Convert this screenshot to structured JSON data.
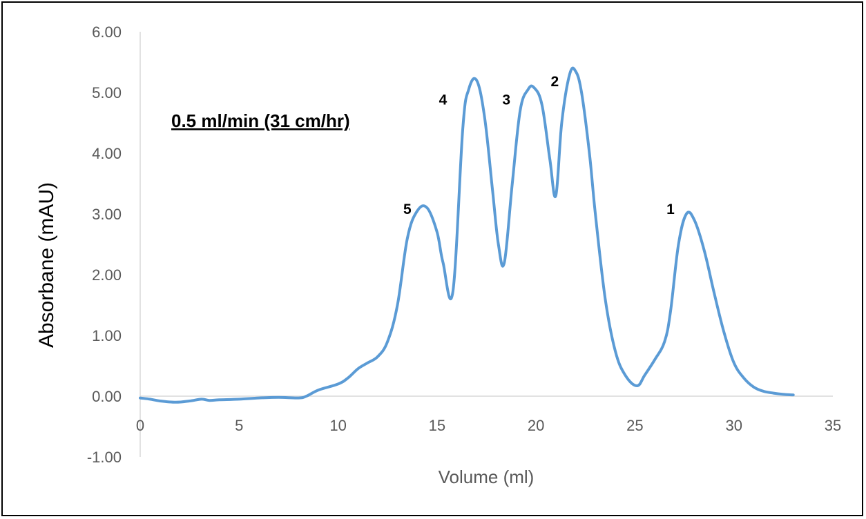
{
  "chart_data": {
    "type": "line",
    "title": "",
    "xlabel": "Volume (ml)",
    "ylabel": "Absorbane (mAU)",
    "xlim": [
      0,
      35
    ],
    "ylim": [
      -1,
      6
    ],
    "x_ticks": [
      "0",
      "5",
      "10",
      "15",
      "20",
      "25",
      "30",
      "35"
    ],
    "y_ticks": [
      "6.00",
      "5.00",
      "4.00",
      "3.00",
      "2.00",
      "1.00",
      "0.00",
      "-1.00"
    ],
    "grid": false,
    "annotation": "0.5 ml/min (31 cm/hr)",
    "series_color": "#5b9bd5",
    "series": [
      {
        "x": [
          0,
          0.5,
          1.0,
          1.8,
          2.5,
          3.1,
          3.5,
          4.0,
          5.0,
          6.0,
          7.0,
          8.0,
          8.4,
          9.0,
          10.0,
          10.5,
          11.0,
          11.5,
          12.0,
          12.5,
          13.0,
          13.5,
          14.0,
          14.5,
          15.0,
          15.3,
          15.8,
          16.3,
          16.6,
          17.0,
          17.4,
          17.8,
          18.1,
          18.4,
          18.8,
          19.2,
          19.6,
          19.9,
          20.3,
          20.7,
          21.0,
          21.3,
          21.7,
          22.0,
          22.3,
          22.7,
          23.0,
          23.5,
          24.0,
          24.5,
          25.1,
          25.5,
          26.0,
          26.5,
          26.8,
          27.2,
          27.6,
          28.0,
          28.5,
          29.0,
          29.5,
          30.0,
          30.5,
          31.0,
          31.5,
          32.0,
          32.5,
          33.0
        ],
        "y": [
          -0.03,
          -0.05,
          -0.08,
          -0.1,
          -0.08,
          -0.05,
          -0.07,
          -0.06,
          -0.05,
          -0.03,
          -0.02,
          -0.03,
          0.0,
          0.1,
          0.2,
          0.3,
          0.45,
          0.55,
          0.65,
          0.9,
          1.5,
          2.6,
          3.05,
          3.1,
          2.7,
          2.2,
          1.72,
          4.4,
          5.05,
          5.2,
          4.6,
          3.4,
          2.5,
          2.2,
          3.5,
          4.7,
          5.05,
          5.08,
          4.8,
          3.9,
          3.3,
          4.5,
          5.3,
          5.35,
          5.0,
          4.0,
          3.0,
          1.6,
          0.75,
          0.35,
          0.17,
          0.35,
          0.6,
          0.9,
          1.4,
          2.5,
          3.0,
          2.9,
          2.4,
          1.7,
          1.05,
          0.55,
          0.3,
          0.15,
          0.08,
          0.05,
          0.03,
          0.02
        ]
      }
    ],
    "peak_labels": [
      {
        "text": "1",
        "x": 26.8,
        "y": 3.0
      },
      {
        "text": "2",
        "x": 20.95,
        "y": 5.1
      },
      {
        "text": "3",
        "x": 18.5,
        "y": 4.8
      },
      {
        "text": "4",
        "x": 15.3,
        "y": 4.8
      },
      {
        "text": "5",
        "x": 13.5,
        "y": 3.0
      }
    ]
  }
}
